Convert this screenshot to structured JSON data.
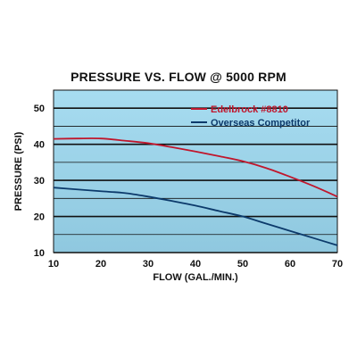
{
  "chart_data": {
    "type": "line",
    "title": "PRESSURE VS. FLOW @ 5000 RPM",
    "xlabel": "FLOW (GAL./MIN.)",
    "ylabel": "PRESSURE (PSI)",
    "xlim": [
      10,
      70
    ],
    "ylim": [
      10,
      55
    ],
    "xticks": [
      10,
      20,
      30,
      40,
      50,
      60,
      70
    ],
    "yticks": [
      10,
      20,
      30,
      40,
      50
    ],
    "grid": true,
    "legend_position": "top-right",
    "background_color": "#9fd4ea",
    "series": [
      {
        "name": "Edelbrock #8810",
        "color": "#c0162c",
        "x": [
          10,
          15,
          20,
          25,
          30,
          35,
          40,
          45,
          50,
          55,
          60,
          65,
          70
        ],
        "y": [
          41.5,
          41.6,
          41.6,
          41.0,
          40.3,
          39.2,
          38.0,
          36.7,
          35.3,
          33.4,
          31.0,
          28.4,
          25.5
        ]
      },
      {
        "name": "Overseas Competitor",
        "color": "#0c3a6b",
        "x": [
          10,
          15,
          20,
          25,
          30,
          35,
          40,
          45,
          50,
          55,
          60,
          65,
          70
        ],
        "y": [
          28.0,
          27.5,
          27.0,
          26.5,
          25.5,
          24.3,
          23.0,
          21.5,
          20.0,
          18.0,
          16.0,
          14.0,
          12.0
        ]
      }
    ]
  }
}
